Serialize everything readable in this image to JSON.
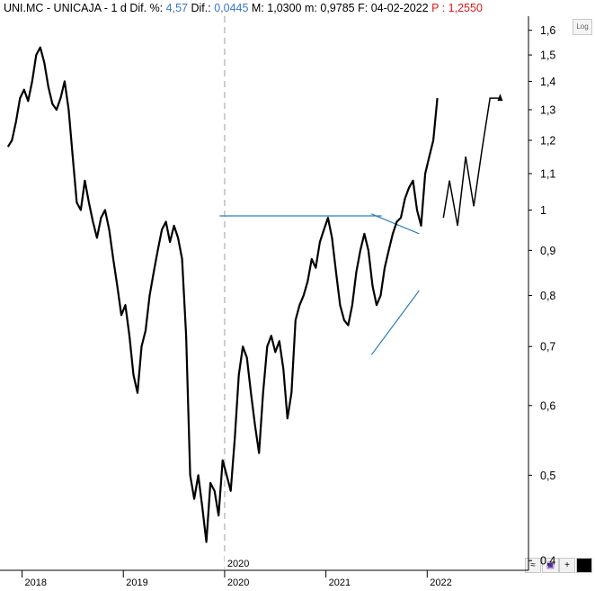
{
  "header": {
    "ticker": "UNI.MC - UNICAJA -",
    "period": "1 d",
    "dif_pct_label": "Dif. %:",
    "dif_pct_value": "4,57",
    "dif_label": "Dif.:",
    "dif_value": "0,0445",
    "max_label": "M:",
    "max_value": "1,0300",
    "min_label": "m:",
    "min_value": "0,9785",
    "date_label": "F:",
    "date_value": "04-02-2022",
    "price_label": "P :",
    "price_value": "1,2550",
    "colors": {
      "accent": "#3a78c8",
      "price": "#e01818"
    }
  },
  "toolbar": {
    "log_label": "Log"
  },
  "chart_data": {
    "type": "line",
    "scale": "log",
    "ylim": [
      0.39,
      1.66
    ],
    "yticks": [
      "0,4",
      "0,5",
      "0,6",
      "0,7",
      "0,8",
      "0,9",
      "1",
      "1,1",
      "1,2",
      "1,3",
      "1,4",
      "1,5",
      "1,6"
    ],
    "xticks": [
      "2018",
      "2019",
      "2020",
      "2021",
      "2022"
    ],
    "xlim": [
      2017.8,
      2023.0
    ],
    "grid": false,
    "series": [
      {
        "x": [
          2017.86,
          2017.9,
          2017.94,
          2017.98,
          2018.02,
          2018.06,
          2018.1,
          2018.14,
          2018.18,
          2018.22,
          2018.26,
          2018.3,
          2018.34,
          2018.38,
          2018.42,
          2018.46,
          2018.5,
          2018.54,
          2018.58,
          2018.62,
          2018.66,
          2018.7,
          2018.74,
          2018.78,
          2018.82,
          2018.86,
          2018.9,
          2018.94,
          2018.98,
          2019.02,
          2019.06,
          2019.1,
          2019.14,
          2019.18,
          2019.22,
          2019.26,
          2019.3,
          2019.34,
          2019.38,
          2019.42,
          2019.46,
          2019.5,
          2019.54,
          2019.58,
          2019.62,
          2019.66,
          2019.7,
          2019.74,
          2019.78,
          2019.82,
          2019.86,
          2019.9,
          2019.94,
          2019.98,
          2020.02,
          2020.06,
          2020.1,
          2020.14,
          2020.18,
          2020.22,
          2020.26,
          2020.3,
          2020.34,
          2020.38,
          2020.42,
          2020.46,
          2020.5,
          2020.54,
          2020.58,
          2020.62,
          2020.66,
          2020.7,
          2020.74,
          2020.78,
          2020.82,
          2020.86,
          2020.9,
          2020.94,
          2020.98,
          2021.02,
          2021.06,
          2021.1,
          2021.14,
          2021.18,
          2021.22,
          2021.26,
          2021.3,
          2021.34,
          2021.38,
          2021.42,
          2021.46,
          2021.5,
          2021.54,
          2021.58,
          2021.62,
          2021.66,
          2021.7,
          2021.74,
          2021.78,
          2021.82,
          2021.86,
          2021.9,
          2021.94,
          2021.98,
          2022.02,
          2022.06,
          2022.1
        ],
        "values": [
          1.18,
          1.2,
          1.26,
          1.34,
          1.37,
          1.33,
          1.4,
          1.5,
          1.53,
          1.47,
          1.38,
          1.32,
          1.3,
          1.34,
          1.4,
          1.3,
          1.15,
          1.02,
          1.0,
          1.08,
          1.02,
          0.97,
          0.93,
          0.98,
          1.0,
          0.95,
          0.88,
          0.82,
          0.76,
          0.78,
          0.72,
          0.65,
          0.62,
          0.7,
          0.73,
          0.8,
          0.85,
          0.9,
          0.95,
          0.97,
          0.92,
          0.96,
          0.93,
          0.88,
          0.72,
          0.5,
          0.47,
          0.5,
          0.46,
          0.42,
          0.49,
          0.48,
          0.45,
          0.52,
          0.5,
          0.48,
          0.55,
          0.65,
          0.7,
          0.68,
          0.62,
          0.57,
          0.53,
          0.62,
          0.7,
          0.72,
          0.69,
          0.71,
          0.66,
          0.58,
          0.62,
          0.75,
          0.78,
          0.8,
          0.83,
          0.88,
          0.86,
          0.92,
          0.95,
          0.98,
          0.93,
          0.85,
          0.78,
          0.75,
          0.74,
          0.78,
          0.85,
          0.9,
          0.94,
          0.9,
          0.82,
          0.78,
          0.8,
          0.86,
          0.9,
          0.94,
          0.97,
          0.98,
          1.03,
          1.06,
          1.08,
          1.0,
          0.96,
          1.1,
          1.15,
          1.2,
          1.34
        ]
      }
    ],
    "projection": {
      "x": [
        2022.16,
        2022.22,
        2022.3,
        2022.38,
        2022.46,
        2022.54,
        2022.62,
        2022.72
      ],
      "values": [
        0.98,
        1.08,
        0.96,
        1.15,
        1.01,
        1.17,
        1.34,
        1.34
      ]
    },
    "trendlines": [
      {
        "x": [
          2019.95,
          2021.55
        ],
        "values": [
          0.985,
          0.985
        ]
      },
      {
        "x": [
          2021.45,
          2021.92
        ],
        "values": [
          0.99,
          0.94
        ]
      },
      {
        "x": [
          2021.45,
          2021.92
        ],
        "values": [
          0.685,
          0.81
        ]
      }
    ]
  },
  "colors": {
    "price": "#000000",
    "trendline": "#2a7fc0",
    "axis": "#000000",
    "crosshair": "#a0a0a0"
  }
}
